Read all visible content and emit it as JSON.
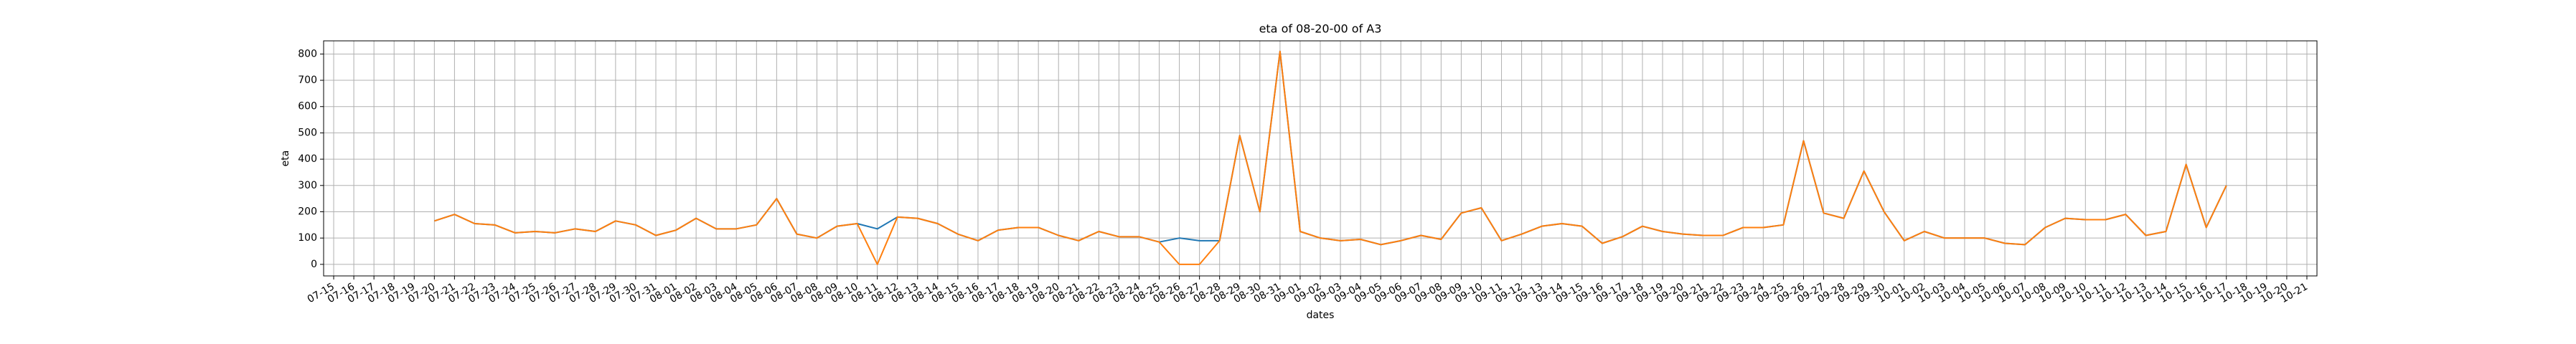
{
  "chart_data": {
    "type": "line",
    "title": "eta of 08-20-00 of A3",
    "x_label": "dates",
    "y_label": "eta",
    "categories": [
      "07-15",
      "07-16",
      "07-17",
      "07-18",
      "07-19",
      "07-20",
      "07-21",
      "07-22",
      "07-23",
      "07-24",
      "07-25",
      "07-26",
      "07-27",
      "07-28",
      "07-29",
      "07-30",
      "07-31",
      "08-01",
      "08-02",
      "08-03",
      "08-04",
      "08-05",
      "08-06",
      "08-07",
      "08-08",
      "08-09",
      "08-10",
      "08-11",
      "08-12",
      "08-13",
      "08-14",
      "08-15",
      "08-16",
      "08-17",
      "08-18",
      "08-19",
      "08-20",
      "08-21",
      "08-22",
      "08-23",
      "08-24",
      "08-25",
      "08-26",
      "08-27",
      "08-28",
      "08-29",
      "08-30",
      "08-31",
      "09-01",
      "09-02",
      "09-03",
      "09-04",
      "09-05",
      "09-06",
      "09-07",
      "09-08",
      "09-09",
      "09-10",
      "09-11",
      "09-12",
      "09-13",
      "09-14",
      "09-15",
      "09-16",
      "09-17",
      "09-18",
      "09-19",
      "09-20",
      "09-21",
      "09-22",
      "09-23",
      "09-24",
      "09-25",
      "09-26",
      "09-27",
      "09-28",
      "09-29",
      "09-30",
      "10-01",
      "10-02",
      "10-03",
      "10-04",
      "10-05",
      "10-06",
      "10-07",
      "10-08",
      "10-09",
      "10-10",
      "10-11",
      "10-12",
      "10-13",
      "10-14",
      "10-15",
      "10-16",
      "10-17",
      "10-18",
      "10-19",
      "10-20",
      "10-21"
    ],
    "series": [
      {
        "color": "#1f77b4",
        "values": [
          null,
          null,
          null,
          null,
          null,
          165,
          190,
          155,
          150,
          120,
          125,
          120,
          135,
          125,
          165,
          150,
          110,
          130,
          175,
          135,
          135,
          150,
          250,
          115,
          100,
          145,
          155,
          135,
          180,
          175,
          155,
          115,
          90,
          130,
          140,
          140,
          110,
          90,
          125,
          105,
          105,
          85,
          100,
          90,
          90,
          490,
          200,
          810,
          125,
          100,
          90,
          95,
          75,
          90,
          110,
          95,
          195,
          215,
          90,
          115,
          145,
          155,
          145,
          80,
          105,
          145,
          125,
          115,
          110,
          110,
          140,
          140,
          150,
          470,
          195,
          175,
          355,
          200,
          90,
          125,
          100,
          100,
          100,
          80,
          75,
          140,
          175,
          170,
          170,
          190,
          110,
          125,
          380,
          140,
          300,
          null,
          null,
          null,
          null
        ]
      },
      {
        "color": "#ff7f0e",
        "values": [
          null,
          null,
          null,
          null,
          null,
          165,
          190,
          155,
          150,
          120,
          125,
          120,
          135,
          125,
          165,
          150,
          110,
          130,
          175,
          135,
          135,
          150,
          250,
          115,
          100,
          145,
          155,
          0,
          180,
          175,
          155,
          115,
          90,
          130,
          140,
          140,
          110,
          90,
          125,
          105,
          105,
          85,
          0,
          0,
          90,
          490,
          200,
          810,
          125,
          100,
          90,
          95,
          75,
          90,
          110,
          95,
          195,
          215,
          90,
          115,
          145,
          155,
          145,
          80,
          105,
          145,
          125,
          115,
          110,
          110,
          140,
          140,
          150,
          470,
          195,
          175,
          355,
          200,
          90,
          125,
          100,
          100,
          100,
          80,
          75,
          140,
          175,
          170,
          170,
          190,
          110,
          125,
          380,
          140,
          300,
          null,
          null,
          null,
          null
        ]
      }
    ],
    "ylim": [
      -44,
      850
    ],
    "yticks": [
      0,
      100,
      200,
      300,
      400,
      500,
      600,
      700,
      800
    ],
    "grid": true
  }
}
